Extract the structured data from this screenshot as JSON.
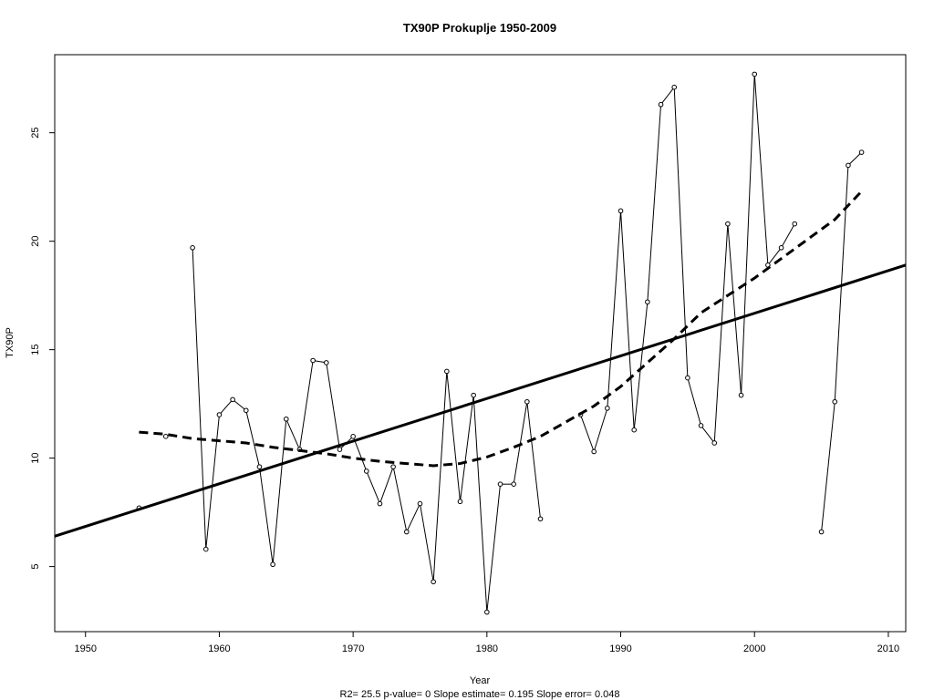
{
  "chart_data": {
    "type": "line",
    "title": "TX90P   Prokuplje 1950-2009",
    "xlabel": "Year",
    "ylabel": "TX90P",
    "footer": "R2= 25.5  p-value= 0  Slope estimate= 0.195  Slope error= 0.048",
    "xlim": [
      1947.7,
      2011.3
    ],
    "ylim": [
      2.0,
      28.6
    ],
    "x_ticks": [
      1950,
      1960,
      1970,
      1980,
      1990,
      2000,
      2010
    ],
    "y_ticks": [
      5,
      10,
      15,
      20,
      25
    ],
    "series": [
      {
        "style": "points-and-lines",
        "x": [
          1954,
          1956,
          1958,
          1959,
          1960,
          1961,
          1962,
          1963,
          1964,
          1965,
          1966,
          1967,
          1968,
          1969,
          1970,
          1971,
          1972,
          1973,
          1974,
          1975,
          1976,
          1977,
          1978,
          1979,
          1980,
          1981,
          1982,
          1983,
          1984,
          1987,
          1988,
          1989,
          1990,
          1991,
          1992,
          1993,
          1994,
          1995,
          1996,
          1997,
          1998,
          1999,
          2000,
          2001,
          2002,
          2003,
          2005,
          2006,
          2007,
          2008
        ],
        "y": [
          7.7,
          11.0,
          19.7,
          5.8,
          12.0,
          12.7,
          12.2,
          9.6,
          5.1,
          11.8,
          10.4,
          14.5,
          14.4,
          10.4,
          11.0,
          9.4,
          7.9,
          9.6,
          6.6,
          7.9,
          4.3,
          14.0,
          8.0,
          12.9,
          2.9,
          8.8,
          8.8,
          12.6,
          7.2,
          12.0,
          10.3,
          12.3,
          21.4,
          11.3,
          17.2,
          26.3,
          27.1,
          13.7,
          11.5,
          10.7,
          20.8,
          12.9,
          27.7,
          18.9,
          19.7,
          20.8,
          6.6,
          12.6,
          23.5,
          24.1
        ]
      },
      {
        "style": "solid-trend",
        "x": [
          1947.7,
          2011.3
        ],
        "y": [
          6.4,
          18.9
        ]
      },
      {
        "style": "dashed-smooth",
        "x": [
          1954,
          1956,
          1958,
          1960,
          1962,
          1964,
          1966,
          1968,
          1970,
          1972,
          1974,
          1976,
          1978,
          1980,
          1982,
          1984,
          1986,
          1988,
          1990,
          1992,
          1994,
          1996,
          1998,
          2000,
          2002,
          2004,
          2006,
          2008
        ],
        "y": [
          11.2,
          11.1,
          10.9,
          10.8,
          10.7,
          10.5,
          10.35,
          10.2,
          10.0,
          9.85,
          9.75,
          9.65,
          9.75,
          10.05,
          10.5,
          11.0,
          11.7,
          12.4,
          13.3,
          14.4,
          15.5,
          16.7,
          17.5,
          18.3,
          19.2,
          20.1,
          21.0,
          22.3
        ]
      }
    ],
    "gaps_after": [
      1956,
      1984,
      2003
    ],
    "grid": false,
    "legend": "none"
  }
}
